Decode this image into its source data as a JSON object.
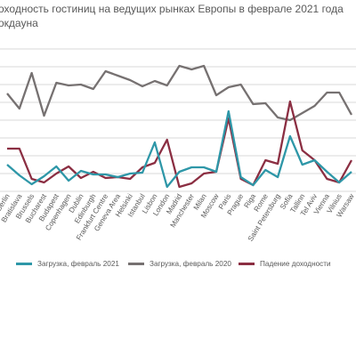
{
  "title": {
    "line1": "оходность гостиниц на ведущих рынках Европы в феврале 2021 года",
    "line2": "окдауна"
  },
  "chart_data": {
    "type": "line",
    "title": "оходность гостиниц на ведущих рынках Европы в феврале 2021 года окдауна",
    "categories": [
      "Berlin",
      "Bratislava",
      "Brussels",
      "Bucharest",
      "Budapest",
      "Copenhagen",
      "Dublin",
      "Edinburgh",
      "Frankfurt Centre",
      "Geneva Area",
      "Helsinki",
      "Istanbul",
      "Lisbon",
      "London",
      "Madrid",
      "Manchester",
      "Milan",
      "Moscow",
      "Paris",
      "Prague",
      "Riga",
      "Rome",
      "Saint Petersburg",
      "Sofia",
      "Tallinn",
      "Tel Aviv",
      "Vienna",
      "Vilnius",
      "Warsaw"
    ],
    "series": [
      {
        "name": "Загрузка, февраль 2021",
        "color": "#2e97a8",
        "values": [
          30,
          18,
          8,
          17,
          28,
          12,
          23,
          19,
          19,
          16,
          20,
          21,
          55,
          5,
          22,
          27,
          27,
          22,
          90,
          16,
          7,
          24,
          16,
          62,
          30,
          35,
          22,
          10,
          22
        ]
      },
      {
        "name": "Загрузка, февраль 2020",
        "color": "#767171",
        "values": [
          110,
          93,
          133,
          85,
          122,
          119,
          120,
          115,
          135,
          130,
          125,
          118,
          124,
          119,
          141,
          137,
          141,
          108,
          117,
          120,
          98,
          99,
          83,
          80,
          88,
          96,
          111,
          111,
          86
        ]
      },
      {
        "name": "Падение доходности",
        "color": "#8b2e42",
        "values": [
          48,
          48,
          14,
          10,
          20,
          28,
          15,
          22,
          15,
          16,
          14,
          27,
          32,
          58,
          5,
          9,
          20,
          22,
          82,
          14,
          7,
          35,
          31,
          101,
          46,
          35,
          14,
          10,
          35
        ]
      }
    ],
    "ylim": [
      0,
      160
    ],
    "grid": true,
    "legend_position": "bottom"
  }
}
